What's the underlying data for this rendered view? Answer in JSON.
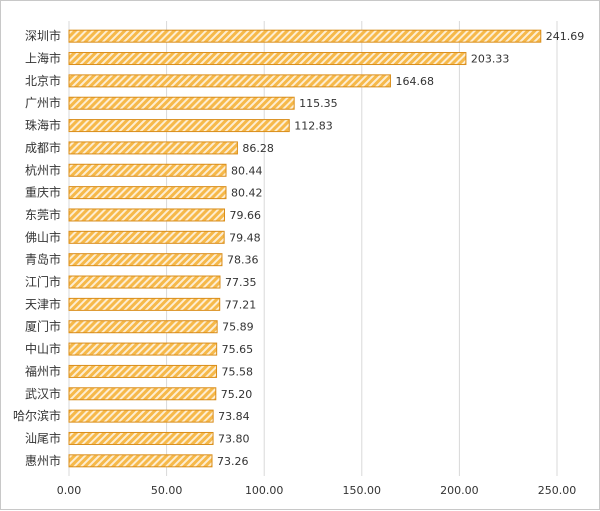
{
  "chart_data": {
    "type": "bar",
    "orientation": "horizontal",
    "title": "",
    "xlabel": "",
    "ylabel": "",
    "categories": [
      "深圳市",
      "上海市",
      "北京市",
      "广州市",
      "珠海市",
      "成都市",
      "杭州市",
      "重庆市",
      "东莞市",
      "佛山市",
      "青岛市",
      "江门市",
      "天津市",
      "厦门市",
      "中山市",
      "福州市",
      "武汉市",
      "哈尔滨市",
      "汕尾市",
      "惠州市"
    ],
    "values": [
      241.69,
      203.33,
      164.68,
      115.35,
      112.83,
      86.28,
      80.44,
      80.42,
      79.66,
      79.48,
      78.36,
      77.35,
      77.21,
      75.89,
      75.65,
      75.58,
      75.2,
      73.84,
      73.8,
      73.26
    ],
    "value_labels": [
      "241.69",
      "203.33",
      "164.68",
      "115.35",
      "112.83",
      "86.28",
      "80.44",
      "80.42",
      "79.66",
      "79.48",
      "78.36",
      "77.35",
      "77.21",
      "75.89",
      "75.65",
      "75.58",
      "75.20",
      "73.84",
      "73.80",
      "73.26"
    ],
    "xlim": [
      0,
      250
    ],
    "ticks": [
      0,
      50,
      100,
      150,
      200,
      250
    ],
    "tick_labels": [
      "0.00",
      "50.00",
      "100.00",
      "150.00",
      "200.00",
      "250.00"
    ],
    "grid": true,
    "legend": "none",
    "colors": {
      "bar_fill": "#f6b94a",
      "bar_stripe": "#ffffff",
      "bar_border": "#d98d1a",
      "grid": "#d9d9d9"
    }
  }
}
